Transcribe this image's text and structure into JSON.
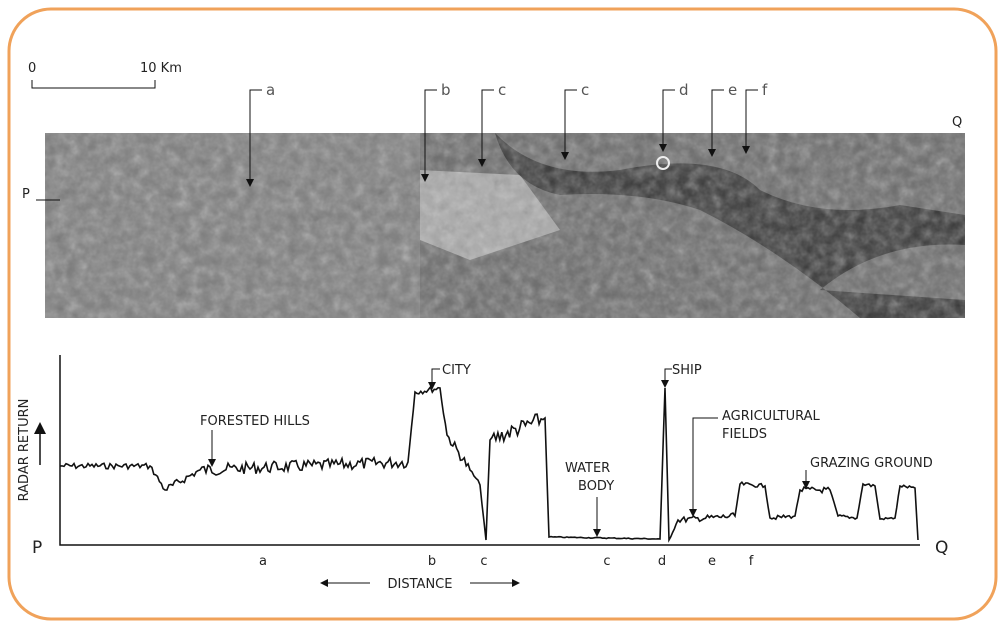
{
  "scale": {
    "start": "0",
    "end": "10 Km"
  },
  "image": {
    "markers": [
      "a",
      "b",
      "c",
      "c",
      "d",
      "e",
      "f"
    ],
    "left": "P",
    "right": "Q"
  },
  "profile": {
    "y_label": "RADAR RETURN",
    "forested_hills": "FORESTED HILLS",
    "city": "CITY",
    "ship": "SHIP",
    "agricultural_fields": [
      "AGRICULTURAL",
      "FIELDS"
    ],
    "water_body": [
      "WATER",
      "BODY"
    ],
    "grazing_ground": "GRAZING GROUND",
    "start": "P",
    "end": "Q",
    "x_labels": [
      "a",
      "b",
      "c",
      "c",
      "d",
      "e",
      "f"
    ],
    "x_label": "DISTANCE"
  }
}
